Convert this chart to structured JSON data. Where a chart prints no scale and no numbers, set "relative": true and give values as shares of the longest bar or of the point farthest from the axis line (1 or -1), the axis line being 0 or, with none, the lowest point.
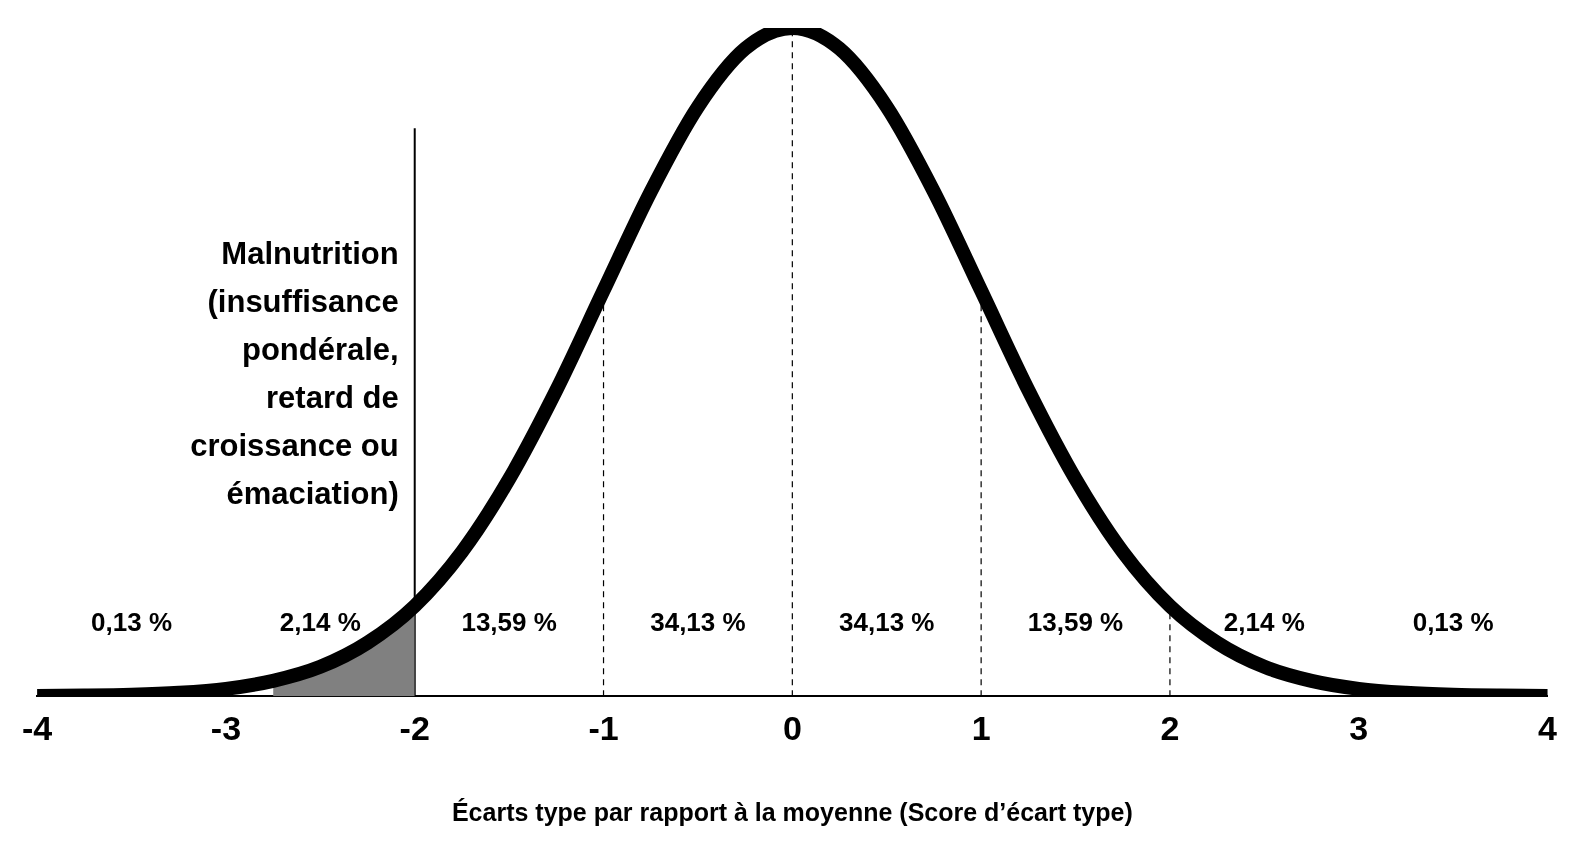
{
  "chart_data": {
    "type": "line",
    "relative": true,
    "xlabel": "Écarts type par rapport à la moyenne (Score d’écart type)",
    "xlim": [
      -4,
      4
    ],
    "xticks": [
      -4,
      -3,
      -2,
      -1,
      0,
      1,
      2,
      3,
      4
    ],
    "grid": false,
    "legend": false,
    "marker": "none",
    "line_style": "solid",
    "series": [
      {
        "color": "#000000",
        "x": [
          -4,
          -3.75,
          -3.5,
          -3.25,
          -3,
          -2.75,
          -2.5,
          -2.25,
          -2,
          -1.75,
          -1.5,
          -1.25,
          -1,
          -0.75,
          -0.5,
          -0.25,
          0,
          0.25,
          0.5,
          0.75,
          1,
          1.25,
          1.5,
          1.75,
          2,
          2.25,
          2.5,
          2.75,
          3,
          3.25,
          3.5,
          3.75,
          4
        ],
        "values": [
          0.0003,
          0.0009,
          0.0022,
          0.0051,
          0.011,
          0.023,
          0.044,
          0.08,
          0.135,
          0.216,
          0.325,
          0.458,
          0.607,
          0.755,
          0.882,
          0.969,
          1,
          0.969,
          0.882,
          0.755,
          0.607,
          0.458,
          0.325,
          0.216,
          0.135,
          0.08,
          0.044,
          0.023,
          0.011,
          0.0051,
          0.0022,
          0.0009,
          0.0003
        ]
      },
      {
        "type": "area",
        "color": "#808080",
        "x": [
          -2.75,
          -2.5,
          -2.25,
          -2
        ],
        "values": [
          0.023,
          0.044,
          0.08,
          0.135
        ]
      }
    ],
    "ref_lines": [
      {
        "axis": "x",
        "value": -2,
        "label": "Malnutrition (insuffisance pondérale, retard de croissance ou émaciation)",
        "color": "#000000",
        "line_style": "solid"
      },
      {
        "axis": "x",
        "value": -1,
        "color": "#000000",
        "line_style": "dashed"
      },
      {
        "axis": "x",
        "value": 0,
        "color": "#000000",
        "line_style": "dashed"
      },
      {
        "axis": "x",
        "value": 1,
        "color": "#000000",
        "line_style": "dashed"
      },
      {
        "axis": "x",
        "value": 2,
        "color": "#000000",
        "line_style": "dashed"
      }
    ],
    "annotations": [
      "0,13 %",
      "2,14 %",
      "13,59 %",
      "34,13 %",
      "34,13 %",
      "13,59 %",
      "2,14 %",
      "0,13 %"
    ]
  }
}
